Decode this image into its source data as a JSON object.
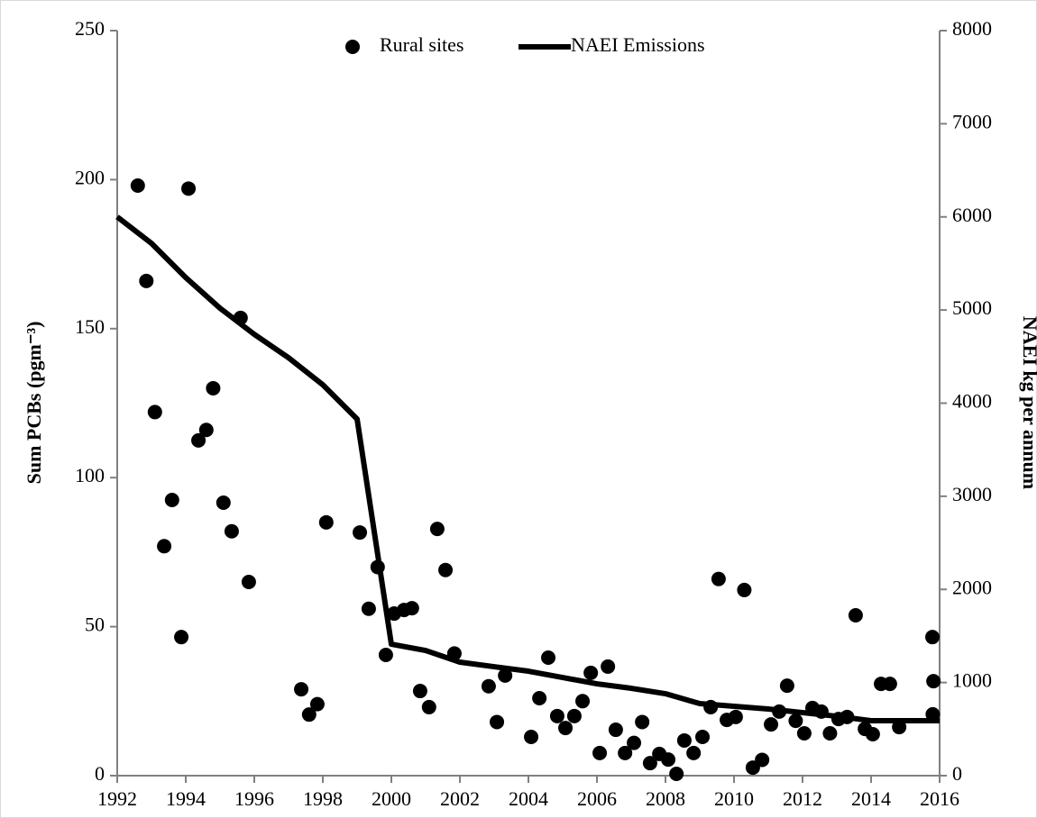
{
  "chart_data": {
    "type": "combo",
    "y_label": "Sum PCBs (pgm⁻³)",
    "y2_label": "NAEI kg per annum",
    "xlim": [
      1992,
      2016
    ],
    "xticks": [
      1992,
      1994,
      1996,
      1998,
      2000,
      2002,
      2004,
      2006,
      2008,
      2010,
      2012,
      2014,
      2016
    ],
    "ylim": [
      0,
      250
    ],
    "yticks": [
      0,
      50,
      100,
      150,
      200,
      250
    ],
    "y2lim": [
      0,
      8000
    ],
    "y2ticks": [
      0,
      1000,
      2000,
      3000,
      4000,
      5000,
      6000,
      7000,
      8000
    ],
    "legend": "top",
    "series": [
      {
        "name": "Rural sites",
        "type": "scatter",
        "color": "#000000",
        "x": [
          1992.6,
          1992.85,
          1993.1,
          1993.37,
          1993.6,
          1993.87,
          1994.08,
          1994.37,
          1994.6,
          1994.8,
          1995.1,
          1995.34,
          1995.6,
          1995.84,
          1997.37,
          1997.6,
          1997.84,
          1998.1,
          1999.08,
          1999.34,
          1999.6,
          1999.84,
          2000.08,
          2000.37,
          2000.6,
          2000.84,
          2001.1,
          2001.34,
          2001.58,
          2001.84,
          2002.84,
          2003.08,
          2003.32,
          2004.08,
          2004.32,
          2004.58,
          2004.84,
          2005.08,
          2005.34,
          2005.58,
          2005.82,
          2006.08,
          2006.32,
          2006.55,
          2006.82,
          2007.08,
          2007.32,
          2007.55,
          2007.82,
          2008.08,
          2008.32,
          2008.55,
          2008.82,
          2009.08,
          2009.32,
          2009.55,
          2009.79,
          2010.05,
          2010.3,
          2010.55,
          2010.82,
          2011.08,
          2011.32,
          2011.55,
          2011.8,
          2012.05,
          2012.29,
          2012.55,
          2012.8,
          2013.05,
          2013.3,
          2013.55,
          2013.82,
          2014.05,
          2014.29,
          2014.55,
          2014.82,
          2015.79,
          2015.82,
          2015.8
        ],
        "values": [
          198,
          166,
          122,
          77,
          92.5,
          46.5,
          197,
          112.5,
          116,
          130,
          91.6,
          82,
          153.6,
          65,
          29,
          20.5,
          24,
          85,
          81.6,
          56,
          70,
          40.5,
          54.4,
          55.6,
          56.2,
          28.4,
          23,
          82.8,
          69,
          41,
          30,
          18,
          33.6,
          13,
          26,
          39.6,
          20,
          16,
          20,
          25,
          34.5,
          7.6,
          36.6,
          15.4,
          7.6,
          11,
          18,
          4.2,
          7.3,
          5.4,
          0.6,
          11.8,
          7.6,
          13,
          23,
          66,
          18.7,
          19.7,
          62.3,
          2.7,
          5.3,
          17.2,
          21.5,
          30.2,
          18.4,
          14.2,
          22.7,
          21.5,
          14.2,
          19,
          19.7,
          53.8,
          15.7,
          13.9,
          30.8,
          30.8,
          16.3,
          46.5,
          31.7,
          20.6
        ]
      },
      {
        "name": "NAEI Emissions",
        "type": "line",
        "axis": "y2",
        "color": "#000000",
        "x": [
          1992,
          1993,
          1994,
          1995,
          1996,
          1997,
          1998,
          1999,
          2000,
          2001,
          2002,
          2003,
          2004,
          2005,
          2006,
          2007,
          2008,
          2009,
          2010,
          2011,
          2012,
          2013,
          2014,
          2015,
          2016
        ],
        "values": [
          6000,
          5716,
          5348,
          5019,
          4739,
          4487,
          4197,
          3830,
          1412,
          1344,
          1219,
          1170,
          1122,
          1054,
          986,
          938,
          880,
          774,
          745,
          716,
          677,
          638,
          590,
          590,
          590
        ]
      }
    ]
  }
}
